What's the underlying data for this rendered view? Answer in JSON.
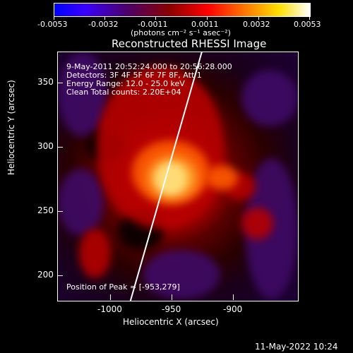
{
  "colorbar": {
    "ticks": [
      "-0.0053",
      "-0.0032",
      "-0.0011",
      "0.0011",
      "0.0032",
      "0.0053"
    ],
    "unit_label": "(photons cm⁻² s⁻¹ asec⁻²)"
  },
  "title": "Reconstructed RHESSI Image",
  "annotations": {
    "time": "9-May-2011 20:52:24.000 to 20:56:28.000",
    "detectors": "Detectors: 3F 4F 5F 6F 7F 8F, Att 1",
    "energy": "Energy Range: 12.0 - 25.0 keV",
    "clean": "Clean    Total counts: 2.20E+04",
    "peak": "Position of Peak = [-953,279]"
  },
  "axes": {
    "x_label": "Heliocentric X (arcsec)",
    "y_label": "Heliocentric Y (arcsec)",
    "x_ticks": [
      "-1000",
      "-950",
      "-900"
    ],
    "y_ticks": [
      "350",
      "300",
      "250",
      "200"
    ]
  },
  "footer_date": "11-May-2022 10:24"
}
